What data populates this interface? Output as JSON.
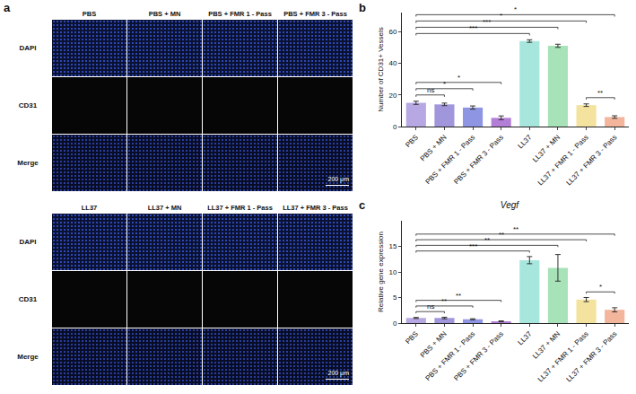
{
  "figure": {
    "panel_a": {
      "panel_label": "a",
      "blocks": [
        {
          "columns": [
            "PBS",
            "PBS + MN",
            "PBS + FMR 1 - Pass",
            "PBS + FMR 3 - Pass"
          ],
          "rows": [
            "DAPI",
            "CD31",
            "Merge"
          ],
          "scale_bar": "200 μm"
        },
        {
          "columns": [
            "LL37",
            "LL37 + MN",
            "LL37 + FMR 1 - Pass",
            "LL37 + FMR 3 - Pass"
          ],
          "rows": [
            "DAPI",
            "CD31",
            "Merge"
          ],
          "scale_bar": "200 μm"
        }
      ]
    }
  },
  "chart_data": [
    {
      "panel_label": "b",
      "type": "bar",
      "y_label": "Number of CD31+ Vessels",
      "categories": [
        "PBS",
        "PBS + MN",
        "PBS + FMR 1 - Pass",
        "PBS + FMR 3 - Pass",
        "LL37",
        "LL37 + MN",
        "LL37 + FMR 1 - Pass",
        "LL37 + FMR 3 - Pass"
      ],
      "values": [
        15,
        14,
        12,
        5.5,
        54,
        51,
        13.5,
        6
      ],
      "errors": [
        1,
        0.8,
        1,
        1.2,
        0.8,
        1,
        0.8,
        0.8
      ],
      "colors": [
        "#b7a7e3",
        "#a096dc",
        "#8e95e2",
        "#b37fd6",
        "#a6e6dc",
        "#a8e2b8",
        "#f3e39f",
        "#f3b59c"
      ],
      "ylim": [
        0,
        72
      ],
      "yticks": [
        0,
        20,
        40,
        60
      ],
      "grid": false,
      "significance": [
        {
          "between": [
            "PBS",
            "PBS + MN"
          ],
          "label": "ns"
        },
        {
          "between": [
            "PBS",
            "PBS + FMR 1 - Pass"
          ],
          "label": "*"
        },
        {
          "between": [
            "PBS",
            "PBS + FMR 3 - Pass"
          ],
          "label": "*"
        },
        {
          "between": [
            "LL37 + FMR 1 - Pass",
            "LL37 + FMR 3 - Pass"
          ],
          "label": "**"
        },
        {
          "between": [
            "PBS",
            "LL37"
          ],
          "label": "***"
        },
        {
          "between": [
            "PBS",
            "LL37 + MN"
          ],
          "label": "***"
        },
        {
          "between": [
            "PBS",
            "LL37 + FMR 1 - Pass"
          ],
          "label": "*"
        },
        {
          "between": [
            "PBS",
            "LL37 + FMR 3 - Pass"
          ],
          "label": "*"
        }
      ]
    },
    {
      "panel_label": "c",
      "type": "bar",
      "title": "Vegf",
      "y_label": "Relative gene expression",
      "categories": [
        "PBS",
        "PBS + MN",
        "PBS + FMR 1 - Pass",
        "PBS + FMR 3 - Pass",
        "LL37",
        "LL37 + MN",
        "LL37 + FMR 1 - Pass",
        "LL37 + FMR 3 - Pass"
      ],
      "values": [
        1,
        1,
        0.75,
        0.35,
        12.3,
        10.8,
        4.6,
        2.6
      ],
      "errors": [
        0.1,
        0.15,
        0.1,
        0.08,
        0.7,
        2.6,
        0.4,
        0.4
      ],
      "colors": [
        "#b7a7e3",
        "#a096dc",
        "#8e95e2",
        "#b37fd6",
        "#a6e6dc",
        "#a8e2b8",
        "#f3e39f",
        "#f3b59c"
      ],
      "ylim": [
        0,
        20
      ],
      "yticks": [
        0,
        5,
        10,
        15
      ],
      "grid": false,
      "significance": [
        {
          "between": [
            "PBS",
            "PBS + MN"
          ],
          "label": "ns"
        },
        {
          "between": [
            "PBS",
            "PBS + FMR 1 - Pass"
          ],
          "label": "**"
        },
        {
          "between": [
            "PBS",
            "PBS + FMR 3 - Pass"
          ],
          "label": "**"
        },
        {
          "between": [
            "LL37 + FMR 1 - Pass",
            "LL37 + FMR 3 - Pass"
          ],
          "label": "*"
        },
        {
          "between": [
            "PBS",
            "LL37"
          ],
          "label": "***"
        },
        {
          "between": [
            "PBS",
            "LL37 + MN"
          ],
          "label": "**"
        },
        {
          "between": [
            "PBS",
            "LL37 + FMR 1 - Pass"
          ],
          "label": "**"
        },
        {
          "between": [
            "PBS",
            "LL37 + FMR 3 - Pass"
          ],
          "label": "**"
        }
      ]
    }
  ]
}
